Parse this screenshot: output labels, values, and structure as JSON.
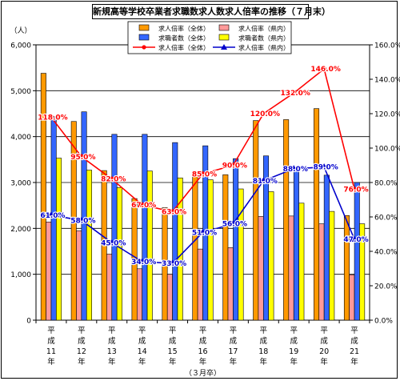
{
  "chart_data": {
    "type": "bar",
    "title": "新規高等学校卒業者求職数求人数求人倍率の推移（７月末）",
    "left_axis_unit": "（人）",
    "left_ticks": [
      "0",
      "1,000",
      "2,000",
      "3,000",
      "4,000",
      "5,000",
      "6,000"
    ],
    "left_ylim": [
      0,
      6000
    ],
    "right_ticks": [
      "0.0%",
      "20.0%",
      "40.0%",
      "60.0%",
      "80.0%",
      "100.0%",
      "120.0%",
      "140.0%",
      "160.0%"
    ],
    "right_ylim": [
      0,
      160
    ],
    "grid": true,
    "legend_placement": "top-center",
    "categories": [
      "平成11年",
      "平成12年",
      "平成13年",
      "平成14年",
      "平成15年",
      "平成16年",
      "平成17年",
      "平成18年",
      "平成19年",
      "平成20年",
      "平成21年"
    ],
    "category_glyphs": [
      [
        "平",
        "成",
        "11",
        "年"
      ],
      [
        "平",
        "成",
        "12",
        "年"
      ],
      [
        "平",
        "成",
        "13",
        "年"
      ],
      [
        "平",
        "成",
        "14",
        "年"
      ],
      [
        "平",
        "成",
        "15",
        "年"
      ],
      [
        "平",
        "成",
        "16",
        "年"
      ],
      [
        "平",
        "成",
        "17",
        "年"
      ],
      [
        "平",
        "成",
        "18",
        "年"
      ],
      [
        "平",
        "成",
        "19",
        "年"
      ],
      [
        "平",
        "成",
        "20",
        "年"
      ],
      [
        "平",
        "成",
        "21",
        "年"
      ]
    ],
    "xlabel": "（３月卒）",
    "series": [
      {
        "name": "求人倍率（全体）",
        "kind": "bar",
        "axis": "left",
        "color": "#ff9900",
        "values": [
          5380,
          4330,
          3260,
          2650,
          2450,
          3220,
          3170,
          4350,
          4370,
          4610,
          2280
        ]
      },
      {
        "name": "求人倍率（県内）",
        "kind": "bar",
        "axis": "left",
        "color": "#ff9999",
        "values": [
          2140,
          1950,
          1440,
          1120,
          1000,
          1550,
          1580,
          2260,
          2270,
          2100,
          990
        ]
      },
      {
        "name": "求職者数（全体）",
        "kind": "bar",
        "axis": "left",
        "color": "#3366ff",
        "values": [
          4430,
          4540,
          4050,
          4050,
          3870,
          3800,
          3520,
          3580,
          3300,
          3160,
          3000
        ]
      },
      {
        "name": "求職者数（県内）",
        "kind": "bar",
        "axis": "left",
        "color": "#ffff00",
        "values": [
          3530,
          3270,
          2890,
          3250,
          3100,
          3060,
          2860,
          2800,
          2550,
          2370,
          2100
        ]
      },
      {
        "name": "求人倍率（全体）",
        "kind": "line",
        "axis": "right",
        "color": "#ff0000",
        "marker": "diamond",
        "values": [
          118,
          95,
          82,
          67,
          63,
          85,
          90,
          120,
          132,
          146,
          76
        ],
        "labels": [
          "118.0%",
          "95.0%",
          "82.0%",
          "67.0%",
          "63.0%",
          "85.0%",
          "90.0%",
          "120.0%",
          "132.0%",
          "146.0%",
          "76.0%"
        ]
      },
      {
        "name": "求人倍率（県内）",
        "kind": "line",
        "axis": "right",
        "color": "#0000cc",
        "marker": "triangle",
        "values": [
          61,
          58,
          45,
          34,
          33,
          51,
          56,
          81,
          88,
          89,
          47
        ],
        "labels": [
          "61.0%",
          "58.0%",
          "45.0%",
          "34.0%",
          "33.0%",
          "51.0%",
          "56.0%",
          "81.0%",
          "88.0%",
          "89.0%",
          "47.0%"
        ]
      }
    ]
  }
}
